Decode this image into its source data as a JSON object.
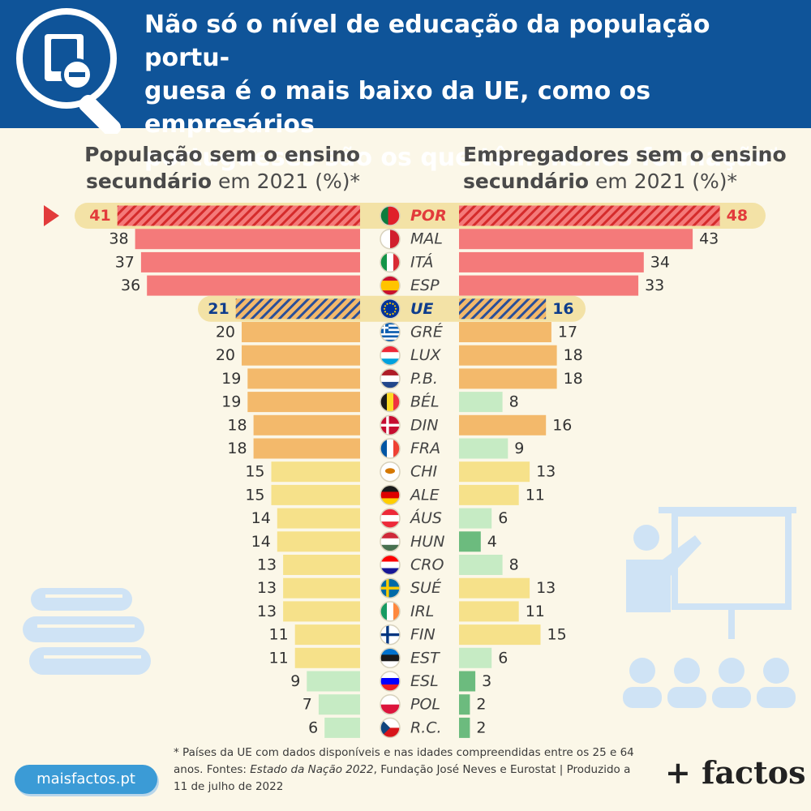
{
  "title_lines": [
    "Não só o nível de educação da população portu-",
    "guesa é o mais baixo da UE, como os empresários",
    "portugueses são os que têm menos formação*"
  ],
  "left_header": {
    "bold1": "População sem o ensino",
    "bold2": "secundário",
    "rest": " em 2021 (%)*"
  },
  "right_header": {
    "bold1": "Empregadores sem o ensino",
    "bold2": "secundário",
    "rest": " em 2021 (%)*"
  },
  "footnote": {
    "part1": "* Países da UE com dados disponíveis e nas idades compreendidas entre os 25 e 64 anos. Fontes: ",
    "source_italic": "Estado da Nação 2022",
    "part2": ", Fundação José Neves e Eurostat | Produzido a 11 de julho de 2022"
  },
  "badge": "maisfactos.pt",
  "brand": "+ factos",
  "colors": {
    "header": "#0f5499",
    "red": "#f47a7a",
    "orange": "#f3b96b",
    "yellow": "#f6e18a",
    "lightgreen": "#c6ebc4",
    "green": "#6cbb7e",
    "highlight_red": "#e23b3b",
    "highlight_blue": "#0f3d8c"
  },
  "chart_data": {
    "type": "bar",
    "layout": "butterfly",
    "series": [
      {
        "name": "População sem o ensino secundário em 2021 (%)",
        "side": "left"
      },
      {
        "name": "Empregadores sem o ensino secundário em 2021 (%)",
        "side": "right"
      }
    ],
    "rows": [
      {
        "code": "POR",
        "flag": "portugal-flag",
        "left": 41,
        "right": 48,
        "lc": "red",
        "rc": "red",
        "highlight": "por"
      },
      {
        "code": "MAL",
        "flag": "malta-flag",
        "left": 38,
        "right": 43,
        "lc": "red",
        "rc": "red"
      },
      {
        "code": "ITÁ",
        "flag": "italy-flag",
        "left": 37,
        "right": 34,
        "lc": "red",
        "rc": "red"
      },
      {
        "code": "ESP",
        "flag": "spain-flag",
        "left": 36,
        "right": 33,
        "lc": "red",
        "rc": "red"
      },
      {
        "code": "UE",
        "flag": "eu-flag",
        "left": 21,
        "right": 16,
        "lc": "orange",
        "rc": "orange",
        "highlight": "ue"
      },
      {
        "code": "GRÉ",
        "flag": "greece-flag",
        "left": 20,
        "right": 17,
        "lc": "orange",
        "rc": "orange"
      },
      {
        "code": "LUX",
        "flag": "luxembourg-flag",
        "left": 20,
        "right": 18,
        "lc": "orange",
        "rc": "orange"
      },
      {
        "code": "P.B.",
        "flag": "netherlands-flag",
        "left": 19,
        "right": 18,
        "lc": "orange",
        "rc": "orange"
      },
      {
        "code": "BÉL",
        "flag": "belgium-flag",
        "left": 19,
        "right": 8,
        "lc": "orange",
        "rc": "lightgreen"
      },
      {
        "code": "DIN",
        "flag": "denmark-flag",
        "left": 18,
        "right": 16,
        "lc": "orange",
        "rc": "orange"
      },
      {
        "code": "FRA",
        "flag": "france-flag",
        "left": 18,
        "right": 9,
        "lc": "orange",
        "rc": "lightgreen"
      },
      {
        "code": "CHI",
        "flag": "cyprus-flag",
        "left": 15,
        "right": 13,
        "lc": "yellow",
        "rc": "yellow"
      },
      {
        "code": "ALE",
        "flag": "germany-flag",
        "left": 15,
        "right": 11,
        "lc": "yellow",
        "rc": "yellow"
      },
      {
        "code": "ÁUS",
        "flag": "austria-flag",
        "left": 14,
        "right": 6,
        "lc": "yellow",
        "rc": "lightgreen"
      },
      {
        "code": "HUN",
        "flag": "hungary-flag",
        "left": 14,
        "right": 4,
        "lc": "yellow",
        "rc": "green"
      },
      {
        "code": "CRO",
        "flag": "croatia-flag",
        "left": 13,
        "right": 8,
        "lc": "yellow",
        "rc": "lightgreen"
      },
      {
        "code": "SUÉ",
        "flag": "sweden-flag",
        "left": 13,
        "right": 13,
        "lc": "yellow",
        "rc": "yellow"
      },
      {
        "code": "IRL",
        "flag": "ireland-flag",
        "left": 13,
        "right": 11,
        "lc": "yellow",
        "rc": "yellow"
      },
      {
        "code": "FIN",
        "flag": "finland-flag",
        "left": 11,
        "right": 15,
        "lc": "yellow",
        "rc": "yellow"
      },
      {
        "code": "EST",
        "flag": "estonia-flag",
        "left": 11,
        "right": 6,
        "lc": "yellow",
        "rc": "lightgreen"
      },
      {
        "code": "ESL",
        "flag": "slovenia-flag",
        "left": 9,
        "right": 3,
        "lc": "lightgreen",
        "rc": "green"
      },
      {
        "code": "POL",
        "flag": "poland-flag",
        "left": 7,
        "right": 2,
        "lc": "lightgreen",
        "rc": "green"
      },
      {
        "code": "R.C.",
        "flag": "czechia-flag",
        "left": 6,
        "right": 2,
        "lc": "lightgreen",
        "rc": "green"
      }
    ]
  }
}
